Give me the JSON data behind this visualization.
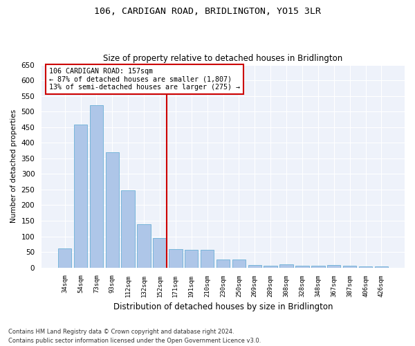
{
  "title": "106, CARDIGAN ROAD, BRIDLINGTON, YO15 3LR",
  "subtitle": "Size of property relative to detached houses in Bridlington",
  "xlabel": "Distribution of detached houses by size in Bridlington",
  "ylabel": "Number of detached properties",
  "bar_labels": [
    "34sqm",
    "54sqm",
    "73sqm",
    "93sqm",
    "112sqm",
    "132sqm",
    "152sqm",
    "171sqm",
    "191sqm",
    "210sqm",
    "230sqm",
    "250sqm",
    "269sqm",
    "289sqm",
    "308sqm",
    "328sqm",
    "348sqm",
    "367sqm",
    "387sqm",
    "406sqm",
    "426sqm"
  ],
  "bar_values": [
    62,
    458,
    521,
    370,
    248,
    140,
    95,
    60,
    58,
    57,
    25,
    25,
    8,
    5,
    10,
    6,
    5,
    8,
    5,
    3,
    3
  ],
  "bar_color": "#aec6e8",
  "bar_edge_color": "#6aafd6",
  "annotation_line_index": 6,
  "annotation_text_line1": "106 CARDIGAN ROAD: 157sqm",
  "annotation_text_line2": "← 87% of detached houses are smaller (1,807)",
  "annotation_text_line3": "13% of semi-detached houses are larger (275) →",
  "annotation_box_color": "#ffffff",
  "annotation_box_edge_color": "#cc0000",
  "ylim": [
    0,
    650
  ],
  "yticks": [
    0,
    50,
    100,
    150,
    200,
    250,
    300,
    350,
    400,
    450,
    500,
    550,
    600,
    650
  ],
  "background_color": "#eef2fa",
  "grid_color": "#ffffff",
  "fig_background": "#ffffff",
  "footer_line1": "Contains HM Land Registry data © Crown copyright and database right 2024.",
  "footer_line2": "Contains public sector information licensed under the Open Government Licence v3.0."
}
